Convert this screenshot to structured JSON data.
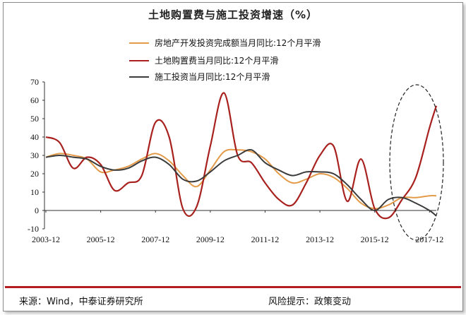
{
  "chart_data": {
    "type": "line",
    "title": "土地购置费与施工投资增速（%）",
    "xlabel": "",
    "ylabel": "",
    "ylim": [
      -10,
      70
    ],
    "yticks": [
      -10,
      0,
      10,
      20,
      30,
      40,
      50,
      60,
      70
    ],
    "xticks": [
      "2003-12",
      "2005-12",
      "2007-12",
      "2009-12",
      "2011-12",
      "2013-12",
      "2015-12",
      "2017-12"
    ],
    "grid": false,
    "legend_position": "top-center",
    "x": [
      "2003-12",
      "2004-06",
      "2004-12",
      "2005-06",
      "2005-12",
      "2006-06",
      "2006-12",
      "2007-06",
      "2007-12",
      "2008-06",
      "2008-12",
      "2009-06",
      "2009-12",
      "2010-06",
      "2010-12",
      "2011-06",
      "2011-12",
      "2012-06",
      "2012-12",
      "2013-06",
      "2013-12",
      "2014-06",
      "2014-12",
      "2015-06",
      "2015-12",
      "2016-06",
      "2016-12",
      "2017-06",
      "2017-12",
      "2018-03"
    ],
    "series": [
      {
        "name": "房地产开发投资完成额当月同比:12个月平滑",
        "color": "#e39b4a",
        "values": [
          29,
          31,
          30,
          28,
          21,
          22,
          24,
          28,
          31,
          27,
          19,
          13,
          22,
          32,
          33,
          32,
          28,
          20,
          15,
          17,
          20,
          18,
          12,
          4,
          1,
          3,
          7,
          7,
          8,
          8
        ]
      },
      {
        "name": "土地购置费当月同比:12个月平滑",
        "color": "#a8211e",
        "values": [
          40,
          37,
          23,
          29,
          25,
          11,
          15,
          19,
          48,
          40,
          1,
          2,
          35,
          64,
          30,
          26,
          15,
          6,
          3,
          15,
          30,
          35,
          5,
          28,
          1,
          -4,
          6,
          18,
          45,
          57
        ]
      },
      {
        "name": "施工投资当月同比:12个月平滑",
        "color": "#3b3b3b",
        "values": [
          29,
          30,
          29,
          28,
          24,
          22,
          23,
          27,
          29,
          25,
          17,
          16,
          21,
          27,
          30,
          33,
          26,
          22,
          19,
          21,
          21,
          20,
          14,
          6,
          0,
          6,
          7,
          4,
          0,
          -3
        ]
      }
    ],
    "annotations": [
      "dashed-ellipse-highlight-2016-2018"
    ]
  },
  "footer": {
    "source": "来源：Wind，中泰证券研究所",
    "risk": "风险提示：政策变动"
  }
}
